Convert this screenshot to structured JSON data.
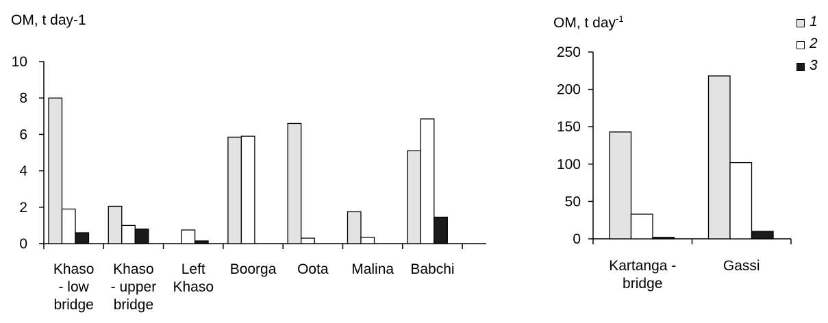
{
  "colors": {
    "series1": "#e3e3e3",
    "series2": "#ffffff",
    "series3": "#1a1a1a"
  },
  "legend": [
    {
      "label": "1",
      "color": "#e3e3e3"
    },
    {
      "label": "2",
      "color": "#ffffff"
    },
    {
      "label": "3",
      "color": "#1a1a1a"
    }
  ],
  "chart_data": [
    {
      "type": "bar",
      "ylabel": "OM, t day-1",
      "ylim": [
        0,
        10
      ],
      "yticks": [
        0,
        2,
        4,
        6,
        8,
        10
      ],
      "categories": [
        [
          "Khaso",
          "- low",
          "bridge"
        ],
        [
          "Khaso",
          "- upper",
          "bridge"
        ],
        [
          "Left",
          "Khaso"
        ],
        [
          "Boorga"
        ],
        [
          "Oota"
        ],
        [
          "Malina"
        ],
        [
          "Babchi"
        ]
      ],
      "series": [
        {
          "name": "1",
          "values": [
            8.0,
            2.05,
            0,
            5.85,
            6.6,
            1.75,
            5.1
          ]
        },
        {
          "name": "2",
          "values": [
            1.9,
            1.0,
            0.75,
            5.9,
            0.3,
            0.35,
            6.85
          ]
        },
        {
          "name": "3",
          "values": [
            0.6,
            0.8,
            0.15,
            0,
            0,
            0,
            1.45
          ]
        }
      ],
      "legend": "right",
      "grid": false
    },
    {
      "type": "bar",
      "ylabel_base": "OM, t day",
      "ylabel_sup": "-1",
      "ylim": [
        0,
        250
      ],
      "yticks": [
        0,
        50,
        100,
        150,
        200,
        250
      ],
      "categories": [
        [
          "Kartanga -",
          "bridge"
        ],
        [
          "Gassi"
        ]
      ],
      "series": [
        {
          "name": "1",
          "values": [
            143,
            218
          ]
        },
        {
          "name": "2",
          "values": [
            33,
            102
          ]
        },
        {
          "name": "3",
          "values": [
            2,
            10
          ]
        }
      ],
      "legend": "top-right",
      "grid": false
    }
  ]
}
